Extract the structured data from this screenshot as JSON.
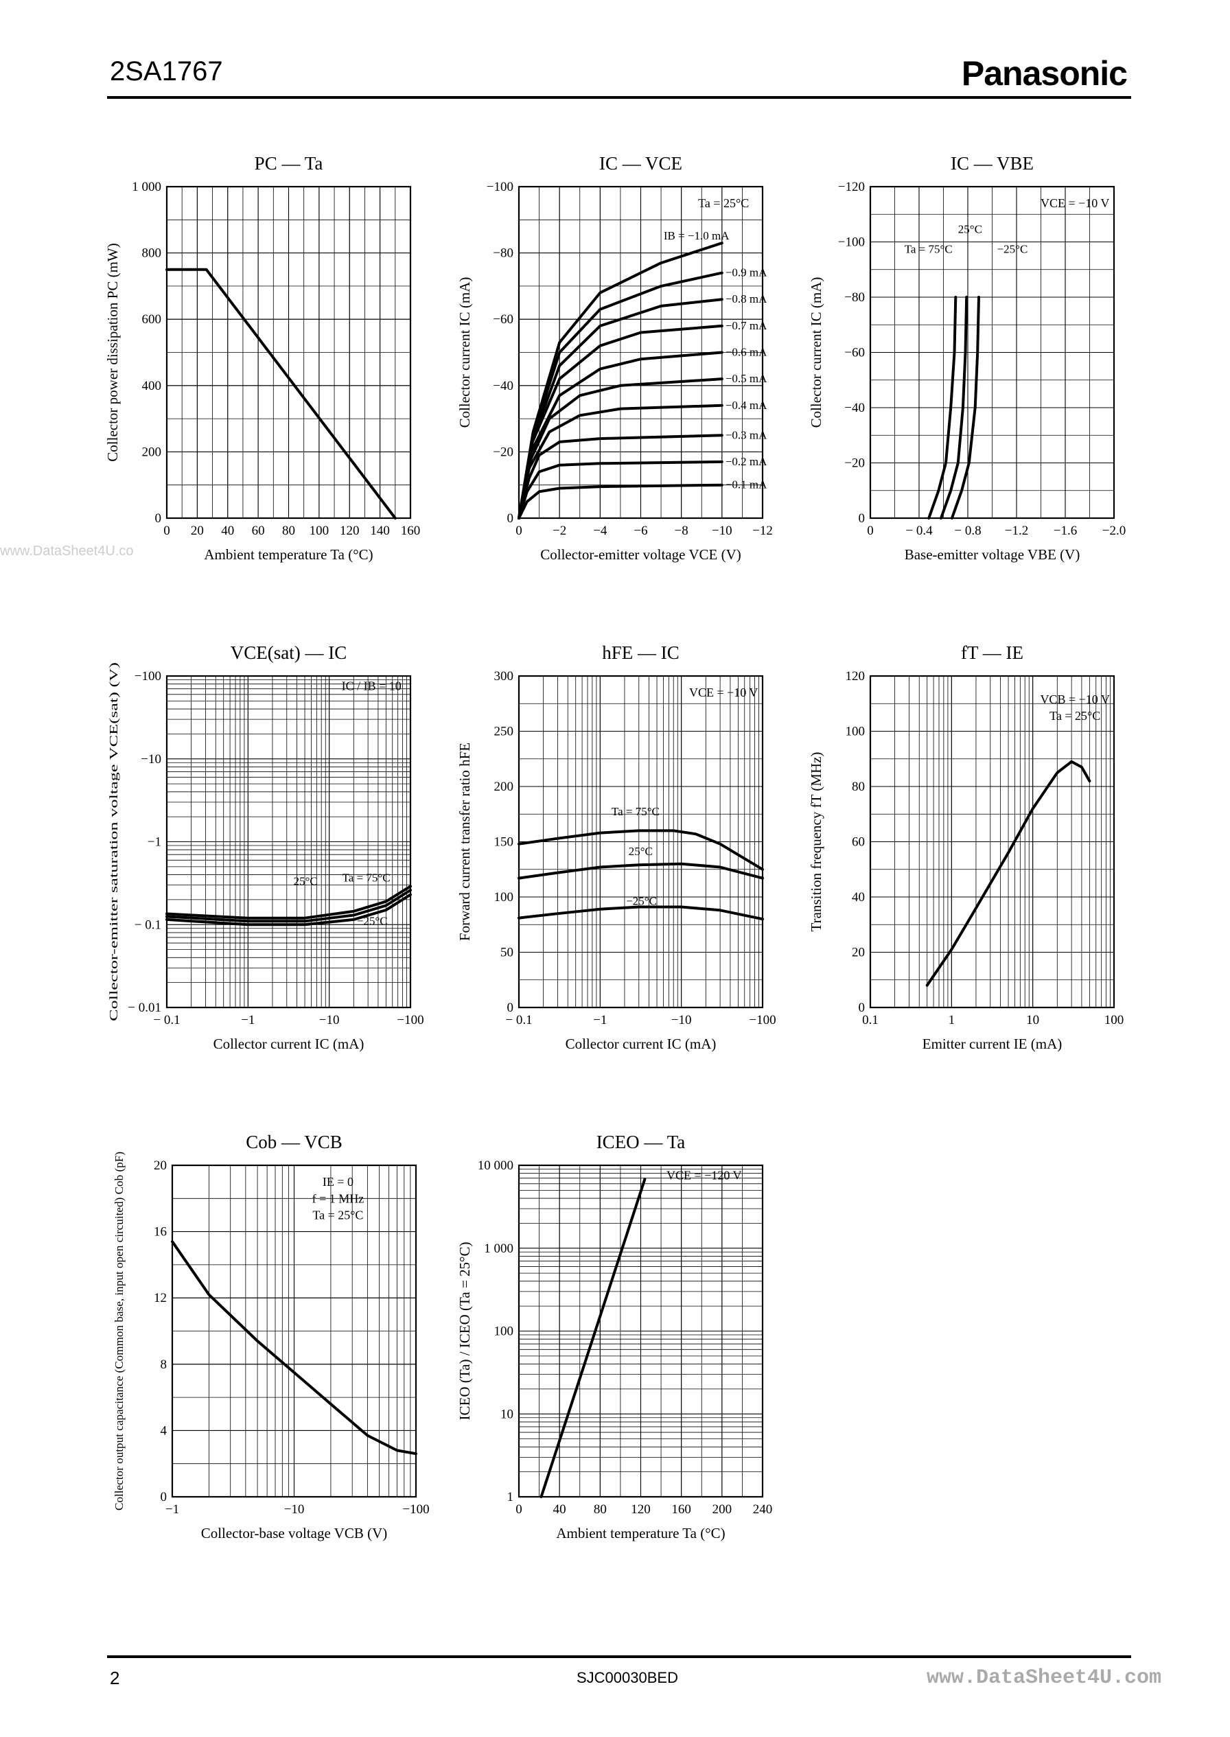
{
  "header": {
    "part_number": "2SA1767",
    "brand": "Panasonic"
  },
  "footer": {
    "page": "2",
    "doc_code": "SJC00030BED"
  },
  "watermarks": {
    "left": "www.DataSheet4U.co",
    "right": "www.DataSheet4U.com"
  },
  "chart_data": [
    {
      "id": "pc-ta",
      "type": "line",
      "title": "PC — Ta",
      "xlabel": "Ambient temperature  Ta  (°C)",
      "ylabel": "Collector power dissipation  PC  (mW)",
      "xscale": "linear",
      "yscale": "linear",
      "xlim": [
        0,
        160
      ],
      "ylim": [
        0,
        1000
      ],
      "xticks": [
        0,
        20,
        40,
        60,
        80,
        100,
        120,
        140,
        160
      ],
      "xticklabels": [
        "0",
        "20",
        "40",
        "60",
        "80",
        "100",
        "120",
        "140",
        "160"
      ],
      "yticks": [
        0,
        200,
        400,
        600,
        800,
        1000
      ],
      "yticklabels": [
        "0",
        "200",
        "400",
        "600",
        "800",
        "1 000"
      ],
      "grid": true,
      "series": [
        {
          "x": [
            0,
            26,
            150
          ],
          "y": [
            750,
            750,
            0
          ]
        }
      ],
      "annotations": []
    },
    {
      "id": "ic-vce",
      "type": "line",
      "title": "IC — VCE",
      "xlabel": "Collector-emitter voltage  VCE  (V)",
      "ylabel": "Collector current  IC  (mA)",
      "xscale": "linear",
      "yscale": "linear",
      "xlim": [
        0,
        12
      ],
      "ylim": [
        0,
        100
      ],
      "xticks": [
        0,
        2,
        4,
        6,
        8,
        10,
        12
      ],
      "xticklabels": [
        "0",
        "−2",
        "−4",
        "−6",
        "−8",
        "−10",
        "−12"
      ],
      "yticks": [
        0,
        20,
        40,
        60,
        80,
        100
      ],
      "yticklabels": [
        "0",
        "−20",
        "−40",
        "−60",
        "−80",
        "−100"
      ],
      "grid": true,
      "series": [
        {
          "name": "−0.1 mA",
          "x": [
            0,
            0.4,
            1,
            2,
            4,
            10
          ],
          "y": [
            0,
            5,
            8,
            9,
            9.5,
            10
          ]
        },
        {
          "name": "−0.2 mA",
          "x": [
            0,
            0.4,
            1,
            2,
            4,
            10
          ],
          "y": [
            0,
            8,
            14,
            16,
            16.5,
            17
          ]
        },
        {
          "name": "−0.3 mA",
          "x": [
            0,
            0.5,
            1,
            2,
            4,
            10
          ],
          "y": [
            0,
            12,
            19,
            23,
            24,
            25
          ]
        },
        {
          "name": "−0.4 mA",
          "x": [
            0,
            0.5,
            1.5,
            3,
            5,
            10
          ],
          "y": [
            0,
            15,
            26,
            31,
            33,
            34
          ]
        },
        {
          "name": "−0.5 mA",
          "x": [
            0,
            0.6,
            1.5,
            3,
            5,
            10
          ],
          "y": [
            0,
            18,
            30,
            37,
            40,
            42
          ]
        },
        {
          "name": "−0.6 mA",
          "x": [
            0,
            0.6,
            2,
            4,
            6,
            10
          ],
          "y": [
            0,
            20,
            37,
            45,
            48,
            50
          ]
        },
        {
          "name": "−0.7 mA",
          "x": [
            0,
            0.6,
            2,
            4,
            6,
            10
          ],
          "y": [
            0,
            22,
            42,
            52,
            56,
            58
          ]
        },
        {
          "name": "−0.8 mA",
          "x": [
            0,
            0.7,
            2,
            4,
            7,
            10
          ],
          "y": [
            0,
            24,
            46,
            58,
            64,
            66
          ]
        },
        {
          "name": "−0.9 mA",
          "x": [
            0,
            0.7,
            2,
            4,
            7,
            10
          ],
          "y": [
            0,
            25,
            50,
            63,
            70,
            74
          ]
        },
        {
          "name": "IB = −1.0 mA",
          "x": [
            0,
            0.7,
            2,
            4,
            7,
            10
          ],
          "y": [
            0,
            26,
            53,
            68,
            77,
            83
          ]
        }
      ],
      "annotations": [
        "Ta = 25°C"
      ]
    },
    {
      "id": "ic-vbe",
      "type": "line",
      "title": "IC — VBE",
      "xlabel": "Base-emitter voltage  VBE  (V)",
      "ylabel": "Collector current  IC  (mA)",
      "xscale": "linear",
      "yscale": "linear",
      "xlim": [
        0,
        2.0
      ],
      "ylim": [
        0,
        120
      ],
      "xticks": [
        0,
        0.4,
        0.8,
        1.2,
        1.6,
        2.0
      ],
      "xticklabels": [
        "0",
        "− 0.4",
        "− 0.8",
        "−1.2",
        "−1.6",
        "−2.0"
      ],
      "yticks": [
        0,
        20,
        40,
        60,
        80,
        100,
        120
      ],
      "yticklabels": [
        "0",
        "−20",
        "−40",
        "−60",
        "−80",
        "−100",
        "−120"
      ],
      "grid": true,
      "series": [
        {
          "name": "Ta = 75°C",
          "x": [
            0.48,
            0.56,
            0.62,
            0.66,
            0.69,
            0.7
          ],
          "y": [
            0,
            10,
            20,
            40,
            60,
            80
          ]
        },
        {
          "name": "25°C",
          "x": [
            0.58,
            0.66,
            0.72,
            0.76,
            0.78,
            0.79
          ],
          "y": [
            0,
            10,
            20,
            40,
            60,
            80
          ]
        },
        {
          "name": "−25°C",
          "x": [
            0.67,
            0.75,
            0.81,
            0.86,
            0.88,
            0.89
          ],
          "y": [
            0,
            10,
            20,
            40,
            60,
            80
          ]
        }
      ],
      "annotations": [
        "VCE = −10 V"
      ]
    },
    {
      "id": "vcesat-ic",
      "type": "line",
      "title": "VCE(sat) — IC",
      "xlabel": "Collector current  IC  (mA)",
      "ylabel": "Collector-emitter saturation voltage  VCE(sat)  (V)",
      "xscale": "log",
      "yscale": "log",
      "xlim": [
        0.1,
        100
      ],
      "ylim": [
        0.01,
        100
      ],
      "xticks": [
        0.1,
        1,
        10,
        100
      ],
      "xticklabels": [
        "− 0.1",
        "−1",
        "−10",
        "−100"
      ],
      "yticks": [
        0.01,
        0.1,
        1,
        10,
        100
      ],
      "yticklabels": [
        "− 0.01",
        "− 0.1",
        "−1",
        "−10",
        "−100"
      ],
      "grid": true,
      "series": [
        {
          "name": "Ta = 75°C",
          "x": [
            0.1,
            1,
            5,
            20,
            50,
            100
          ],
          "y": [
            0.115,
            0.1,
            0.1,
            0.115,
            0.15,
            0.23
          ]
        },
        {
          "name": "25°C",
          "x": [
            0.1,
            1,
            5,
            20,
            50,
            100
          ],
          "y": [
            0.125,
            0.11,
            0.11,
            0.13,
            0.17,
            0.26
          ]
        },
        {
          "name": "−25°C",
          "x": [
            0.1,
            1,
            5,
            20,
            50,
            100
          ],
          "y": [
            0.135,
            0.12,
            0.12,
            0.145,
            0.19,
            0.29
          ]
        }
      ],
      "annotations": [
        "IC / IB = 10"
      ]
    },
    {
      "id": "hfe-ic",
      "type": "line",
      "title": "hFE — IC",
      "xlabel": "Collector current  IC  (mA)",
      "ylabel": "Forward current transfer ratio  hFE",
      "xscale": "log",
      "yscale": "linear",
      "xlim": [
        0.1,
        100
      ],
      "ylim": [
        0,
        300
      ],
      "xticks": [
        0.1,
        1,
        10,
        100
      ],
      "xticklabels": [
        "− 0.1",
        "−1",
        "−10",
        "−100"
      ],
      "yticks": [
        0,
        50,
        100,
        150,
        200,
        250,
        300
      ],
      "yticklabels": [
        "0",
        "50",
        "100",
        "150",
        "200",
        "250",
        "300"
      ],
      "grid": true,
      "series": [
        {
          "name": "Ta = 75°C",
          "x": [
            0.1,
            0.3,
            1,
            3,
            8,
            15,
            30,
            100
          ],
          "y": [
            148,
            153,
            158,
            160,
            160,
            157,
            148,
            125
          ]
        },
        {
          "name": "25°C",
          "x": [
            0.1,
            0.3,
            1,
            3,
            10,
            30,
            100
          ],
          "y": [
            117,
            122,
            127,
            129,
            130,
            127,
            117
          ]
        },
        {
          "name": "−25°C",
          "x": [
            0.1,
            0.3,
            1,
            3,
            10,
            30,
            100
          ],
          "y": [
            81,
            85,
            89,
            91,
            91,
            88,
            80
          ]
        }
      ],
      "annotations": [
        "VCE = −10 V"
      ]
    },
    {
      "id": "ft-ie",
      "type": "line",
      "title": "fT — IE",
      "xlabel": "Emitter current  IE  (mA)",
      "ylabel": "Transition frequency  fT  (MHz)",
      "xscale": "log",
      "yscale": "linear",
      "xlim": [
        0.1,
        100
      ],
      "ylim": [
        0,
        120
      ],
      "xticks": [
        0.1,
        1,
        10,
        100
      ],
      "xticklabels": [
        "0.1",
        "1",
        "10",
        "100"
      ],
      "yticks": [
        0,
        20,
        40,
        60,
        80,
        100,
        120
      ],
      "yticklabels": [
        "0",
        "20",
        "40",
        "60",
        "80",
        "100",
        "120"
      ],
      "grid": true,
      "series": [
        {
          "x": [
            0.5,
            1,
            2,
            5,
            10,
            20,
            30,
            40,
            50
          ],
          "y": [
            8,
            21,
            36,
            56,
            72,
            85,
            89,
            87,
            82
          ]
        }
      ],
      "annotations": [
        "VCB = −10 V",
        "Ta = 25°C"
      ]
    },
    {
      "id": "cob-vcb",
      "type": "line",
      "title": "Cob — VCB",
      "xlabel": "Collector-base voltage  VCB  (V)",
      "ylabel": "Collector output capacitance (Common base, input open circuited)  Cob  (pF)",
      "xscale": "log",
      "yscale": "linear",
      "xlim": [
        1,
        100
      ],
      "ylim": [
        0,
        20
      ],
      "xticks": [
        1,
        10,
        100
      ],
      "xticklabels": [
        "−1",
        "−10",
        "−100"
      ],
      "yticks": [
        0,
        4,
        8,
        12,
        16,
        20
      ],
      "yticklabels": [
        "0",
        "4",
        "8",
        "12",
        "16",
        "20"
      ],
      "grid": true,
      "series": [
        {
          "x": [
            1,
            2,
            5,
            10,
            20,
            40,
            70,
            100
          ],
          "y": [
            15.4,
            12.2,
            9.4,
            7.5,
            5.6,
            3.7,
            2.8,
            2.6
          ]
        }
      ],
      "annotations": [
        "IE = 0",
        "f = 1 MHz",
        "Ta = 25°C"
      ]
    },
    {
      "id": "iceo-ta",
      "type": "line",
      "title": "ICEO — Ta",
      "xlabel": "Ambient temperature  Ta  (°C)",
      "ylabel": "ICEO (Ta) / ICEO (Ta = 25°C)",
      "xscale": "linear",
      "yscale": "log",
      "xlim": [
        0,
        240
      ],
      "ylim": [
        1,
        10000
      ],
      "xticks": [
        0,
        40,
        80,
        120,
        160,
        200,
        240
      ],
      "xticklabels": [
        "0",
        "40",
        "80",
        "120",
        "160",
        "200",
        "240"
      ],
      "yticks": [
        1,
        10,
        100,
        1000,
        10000
      ],
      "yticklabels": [
        "1",
        "10",
        "100",
        "1 000",
        "10 000"
      ],
      "grid": true,
      "series": [
        {
          "x": [
            22,
            124
          ],
          "y": [
            1,
            6800
          ]
        }
      ],
      "annotations": [
        "VCE = −120 V"
      ]
    }
  ]
}
